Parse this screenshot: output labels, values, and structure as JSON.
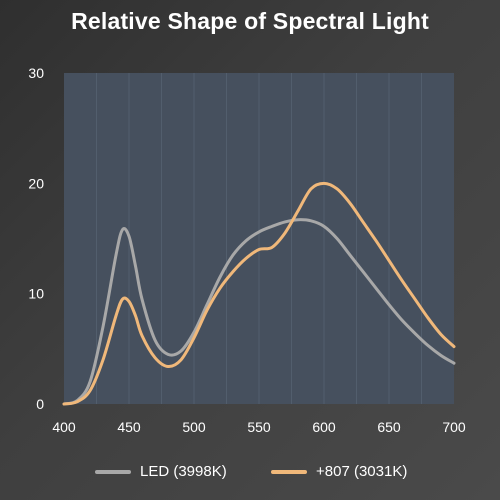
{
  "chart_data": {
    "type": "line",
    "title": "Relative Shape of Spectral Light",
    "xlabel": "",
    "ylabel": "",
    "xlim": [
      400,
      700
    ],
    "ylim": [
      0,
      30
    ],
    "x_ticks": [
      "400",
      "450",
      "500",
      "550",
      "600",
      "650",
      "700"
    ],
    "y_ticks": [
      "0",
      "10",
      "20",
      "30"
    ],
    "grid": "vertical",
    "legend_position": "bottom",
    "colors": {
      "plot_bg": "#46505e",
      "grid": "#525e6d"
    },
    "series": [
      {
        "name": "LED (3998K)",
        "color": "#a8a8a8",
        "x": [
          400,
          410,
          420,
          430,
          440,
          445,
          450,
          455,
          460,
          470,
          480,
          490,
          500,
          510,
          520,
          530,
          540,
          550,
          560,
          570,
          580,
          590,
          600,
          610,
          620,
          630,
          640,
          650,
          660,
          670,
          680,
          690,
          700
        ],
        "y": [
          0,
          0.3,
          2,
          7,
          13.5,
          15.8,
          15.2,
          12.5,
          9.5,
          5.8,
          4.5,
          4.8,
          6.5,
          9,
          11.5,
          13.5,
          14.8,
          15.6,
          16.1,
          16.5,
          16.7,
          16.6,
          16.1,
          15,
          13.5,
          12,
          10.5,
          9,
          7.6,
          6.4,
          5.3,
          4.4,
          3.7
        ]
      },
      {
        "name": "+807 (3031K)",
        "color": "#f0b87a",
        "x": [
          400,
          410,
          420,
          430,
          440,
          445,
          450,
          455,
          460,
          470,
          480,
          490,
          500,
          510,
          520,
          530,
          540,
          550,
          560,
          570,
          580,
          590,
          600,
          610,
          620,
          630,
          640,
          650,
          660,
          670,
          680,
          690,
          700
        ],
        "y": [
          0,
          0.2,
          1.2,
          4,
          8,
          9.5,
          9.3,
          8,
          6.2,
          4.2,
          3.4,
          4,
          6,
          8.5,
          10.5,
          12,
          13.2,
          14,
          14.2,
          15.5,
          17.5,
          19.5,
          20,
          19.5,
          18.2,
          16.5,
          14.8,
          13,
          11.2,
          9.5,
          7.8,
          6.3,
          5.2
        ]
      }
    ]
  }
}
